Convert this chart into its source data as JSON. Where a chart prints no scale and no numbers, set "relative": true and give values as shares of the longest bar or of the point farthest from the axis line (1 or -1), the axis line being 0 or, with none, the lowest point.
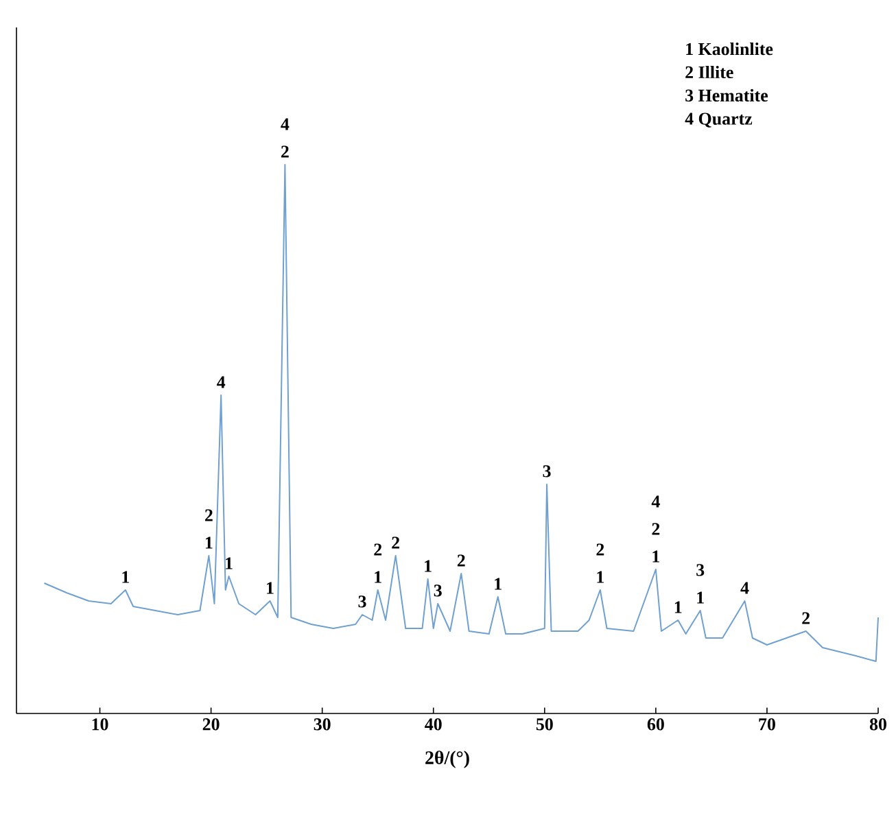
{
  "chart_data": {
    "type": "line",
    "xlabel": "2θ/(°)",
    "relative": true,
    "color": "#6fa0d0",
    "xlim": [
      2.5,
      80
    ],
    "xticks": [
      10,
      20,
      30,
      40,
      50,
      60,
      70,
      80
    ],
    "x": [
      5,
      7,
      9,
      11,
      12.3,
      13,
      15,
      17,
      19,
      19.8,
      20.3,
      20.9,
      21.3,
      21.6,
      22.5,
      24,
      25.3,
      26,
      26.65,
      27.2,
      29,
      31,
      33,
      33.6,
      34.5,
      35,
      35.7,
      36.6,
      37.5,
      39,
      39.5,
      40,
      40.4,
      41.5,
      42.5,
      43.2,
      45,
      45.8,
      46.5,
      48,
      50.0,
      50.2,
      50.6,
      53,
      54,
      55,
      55.6,
      58,
      60,
      60.5,
      62,
      62.7,
      64,
      64.5,
      66,
      68,
      68.7,
      70,
      73.5,
      75,
      78,
      79.8,
      80
    ],
    "values": [
      0.2375,
      0.22,
      0.205,
      0.2,
      0.225,
      0.195,
      0.1875,
      0.18,
      0.1875,
      0.2875,
      0.2,
      0.58,
      0.225,
      0.25,
      0.2,
      0.18,
      0.205,
      0.175,
      1.0,
      0.175,
      0.1625,
      0.155,
      0.1625,
      0.18,
      0.17,
      0.225,
      0.17,
      0.2875,
      0.155,
      0.155,
      0.245,
      0.155,
      0.2,
      0.15,
      0.255,
      0.15,
      0.145,
      0.2125,
      0.145,
      0.145,
      0.155,
      0.4175,
      0.15,
      0.15,
      0.17,
      0.225,
      0.155,
      0.15,
      0.2625,
      0.15,
      0.17,
      0.145,
      0.1875,
      0.1375,
      0.1375,
      0.205,
      0.1375,
      0.125,
      0.15,
      0.12,
      0.105,
      0.095,
      0.175
    ],
    "annotations": [
      "1 Kaolinlite",
      "2 Illite",
      "3 Hematite",
      "4 Quartz",
      {
        "text": "1",
        "x": 12.3,
        "y": 0.225
      },
      {
        "text": "2",
        "x": 19.8,
        "y": 0.2875
      },
      {
        "text": "1",
        "x": 19.8,
        "y": 0.2875
      },
      {
        "text": "4",
        "x": 20.9,
        "y": 0.58
      },
      {
        "text": "1",
        "x": 21.6,
        "y": 0.25
      },
      {
        "text": "1",
        "x": 25.3,
        "y": 0.205
      },
      {
        "text": "4",
        "x": 26.65,
        "y": 1.0
      },
      {
        "text": "2",
        "x": 26.65,
        "y": 1.0
      },
      {
        "text": "3",
        "x": 33.6,
        "y": 0.18
      },
      {
        "text": "2",
        "x": 35,
        "y": 0.225
      },
      {
        "text": "1",
        "x": 35,
        "y": 0.225
      },
      {
        "text": "2",
        "x": 36.6,
        "y": 0.2875
      },
      {
        "text": "1",
        "x": 39.5,
        "y": 0.245
      },
      {
        "text": "3",
        "x": 40.4,
        "y": 0.2
      },
      {
        "text": "2",
        "x": 42.5,
        "y": 0.255
      },
      {
        "text": "1",
        "x": 45.8,
        "y": 0.2125
      },
      {
        "text": "3",
        "x": 50.2,
        "y": 0.4175
      },
      {
        "text": "2",
        "x": 55,
        "y": 0.225
      },
      {
        "text": "1",
        "x": 55,
        "y": 0.225
      },
      "4",
      {
        "text": "2",
        "x": 60,
        "y": 0.2625
      },
      {
        "text": "1",
        "x": 60,
        "y": 0.2625
      },
      {
        "text": "1",
        "x": 62,
        "y": 0.17
      },
      {
        "text": "3",
        "x": 64,
        "y": 0.1875
      },
      {
        "text": "1",
        "x": 64,
        "y": 0.1875
      },
      {
        "text": "4",
        "x": 68,
        "y": 0.205
      },
      {
        "text": "2",
        "x": 73.5,
        "y": 0.15
      }
    ]
  }
}
